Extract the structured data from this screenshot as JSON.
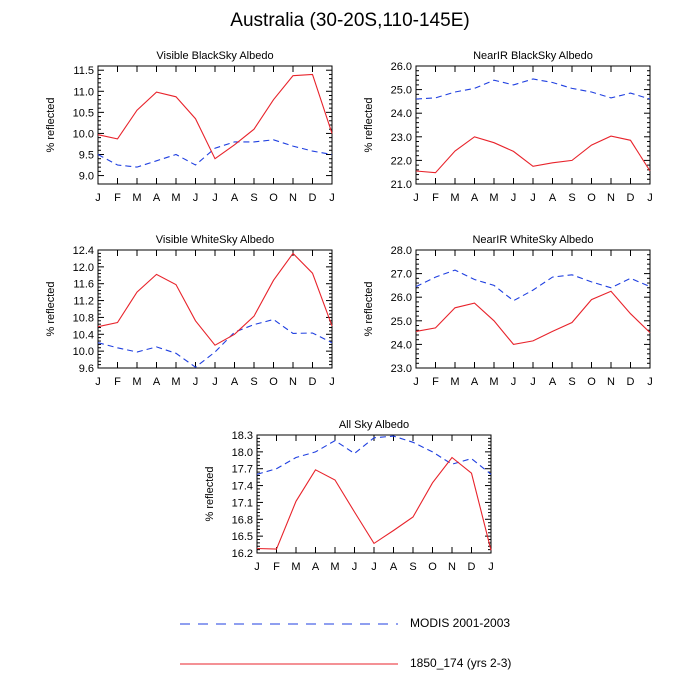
{
  "title": "Australia (30-20S,110-145E)",
  "colors": {
    "modis": "#1f3fe0",
    "model": "#e8232b"
  },
  "legend": [
    {
      "label": "MODIS 2001-2003",
      "style": "dashed",
      "color": "#1f3fe0"
    },
    {
      "label": "1850_174 (yrs 2-3)",
      "style": "solid",
      "color": "#e8232b"
    }
  ],
  "chart_data": [
    {
      "type": "line",
      "title": "Visible BlackSky Albedo",
      "ylabel": "% reflected",
      "categories": [
        "J",
        "F",
        "M",
        "A",
        "M",
        "J",
        "J",
        "A",
        "S",
        "O",
        "N",
        "D",
        "J"
      ],
      "ylim": [
        8.8,
        11.6
      ],
      "yticks": [
        "9.0",
        "9.5",
        "10.0",
        "10.5",
        "11.0",
        "11.5"
      ],
      "series": [
        {
          "name": "MODIS 2001-2003",
          "style": "dashed",
          "values": [
            9.5,
            9.25,
            9.2,
            9.35,
            9.5,
            9.25,
            9.65,
            9.8,
            9.8,
            9.85,
            9.7,
            9.58,
            9.5
          ]
        },
        {
          "name": "1850_174 (yrs 2-3)",
          "style": "solid",
          "values": [
            9.97,
            9.87,
            10.55,
            10.98,
            10.87,
            10.35,
            9.4,
            9.73,
            10.1,
            10.8,
            11.37,
            11.4,
            10.0
          ]
        }
      ]
    },
    {
      "type": "line",
      "title": "NearIR BlackSky Albedo",
      "ylabel": "% reflected",
      "categories": [
        "J",
        "F",
        "M",
        "A",
        "M",
        "J",
        "J",
        "A",
        "S",
        "O",
        "N",
        "D",
        "J"
      ],
      "ylim": [
        21.0,
        26.0
      ],
      "yticks": [
        "21.0",
        "22.0",
        "23.0",
        "24.0",
        "25.0",
        "26.0"
      ],
      "series": [
        {
          "name": "MODIS 2001-2003",
          "style": "dashed",
          "values": [
            24.6,
            24.65,
            24.9,
            25.05,
            25.4,
            25.2,
            25.45,
            25.3,
            25.05,
            24.9,
            24.65,
            24.85,
            24.6
          ]
        },
        {
          "name": "1850_174 (yrs 2-3)",
          "style": "solid",
          "values": [
            21.55,
            21.48,
            22.4,
            23.0,
            22.75,
            22.38,
            21.75,
            21.9,
            22.0,
            22.65,
            23.03,
            22.85,
            21.55
          ]
        }
      ]
    },
    {
      "type": "line",
      "title": "Visible WhiteSky Albedo",
      "ylabel": "% reflected",
      "categories": [
        "J",
        "F",
        "M",
        "A",
        "M",
        "J",
        "J",
        "A",
        "S",
        "O",
        "N",
        "D",
        "J"
      ],
      "ylim": [
        9.6,
        12.4
      ],
      "yticks": [
        "9.6",
        "10.0",
        "10.4",
        "10.8",
        "11.2",
        "11.6",
        "12.0",
        "12.4"
      ],
      "series": [
        {
          "name": "MODIS 2001-2003",
          "style": "dashed",
          "values": [
            10.2,
            10.08,
            9.98,
            10.1,
            9.95,
            9.62,
            9.98,
            10.45,
            10.63,
            10.75,
            10.42,
            10.43,
            10.2
          ]
        },
        {
          "name": "1850_174 (yrs 2-3)",
          "style": "solid",
          "values": [
            10.58,
            10.68,
            11.4,
            11.82,
            11.58,
            10.72,
            10.14,
            10.4,
            10.83,
            11.68,
            12.32,
            11.85,
            10.6
          ]
        }
      ]
    },
    {
      "type": "line",
      "title": "NearIR WhiteSky Albedo",
      "ylabel": "% reflected",
      "categories": [
        "J",
        "F",
        "M",
        "A",
        "M",
        "J",
        "J",
        "A",
        "S",
        "O",
        "N",
        "D",
        "J"
      ],
      "ylim": [
        23.0,
        28.0
      ],
      "yticks": [
        "23.0",
        "24.0",
        "25.0",
        "26.0",
        "27.0",
        "28.0"
      ],
      "series": [
        {
          "name": "MODIS 2001-2003",
          "style": "dashed",
          "values": [
            26.45,
            26.85,
            27.15,
            26.75,
            26.5,
            25.85,
            26.3,
            26.85,
            26.95,
            26.65,
            26.4,
            26.8,
            26.45
          ]
        },
        {
          "name": "1850_174 (yrs 2-3)",
          "style": "solid",
          "values": [
            24.55,
            24.7,
            25.55,
            25.75,
            25.0,
            24.0,
            24.15,
            24.55,
            24.93,
            25.9,
            26.25,
            25.3,
            24.5
          ]
        }
      ]
    },
    {
      "type": "line",
      "title": "All Sky Albedo",
      "ylabel": "% reflected",
      "categories": [
        "J",
        "F",
        "M",
        "A",
        "M",
        "J",
        "J",
        "A",
        "S",
        "O",
        "N",
        "D",
        "J"
      ],
      "ylim": [
        16.2,
        18.3
      ],
      "yticks": [
        "16.2",
        "16.5",
        "16.8",
        "17.1",
        "17.4",
        "17.7",
        "18.0",
        "18.3"
      ],
      "series": [
        {
          "name": "MODIS 2001-2003",
          "style": "dashed",
          "values": [
            17.6,
            17.7,
            17.9,
            18.0,
            18.2,
            17.97,
            18.25,
            18.28,
            18.17,
            18.0,
            17.78,
            17.88,
            17.6
          ]
        },
        {
          "name": "1850_174 (yrs 2-3)",
          "style": "solid",
          "values": [
            16.28,
            16.27,
            17.12,
            17.68,
            17.5,
            16.93,
            16.37,
            16.6,
            16.84,
            17.45,
            17.9,
            17.62,
            16.25
          ]
        }
      ]
    }
  ]
}
